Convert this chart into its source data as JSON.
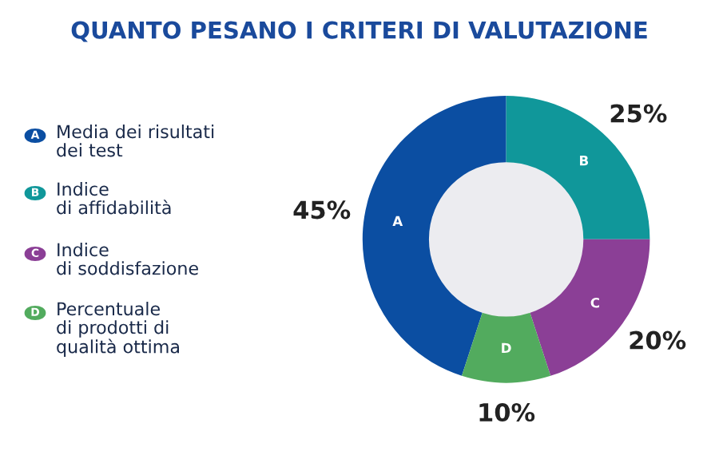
{
  "chart_data": {
    "type": "donut",
    "title": "QUANTO PESANO I CRITERI DI VALUTAZIONE",
    "categories": [
      "Media dei risultati\ndei test",
      "Indice\ndi affidabilità",
      "Indice\ndi soddisfazione",
      "Percentuale\ndi prodotti di\nqualità ottima"
    ],
    "values": [
      45,
      25,
      20,
      10
    ],
    "colors": [
      "#0b4ea2",
      "#10979a",
      "#8b3f96",
      "#52ab5e"
    ],
    "value_labels": [
      "45%",
      "25%",
      "20%",
      "10%"
    ],
    "annotations": [
      "A",
      "B",
      "C",
      "D"
    ],
    "legend": "left"
  }
}
